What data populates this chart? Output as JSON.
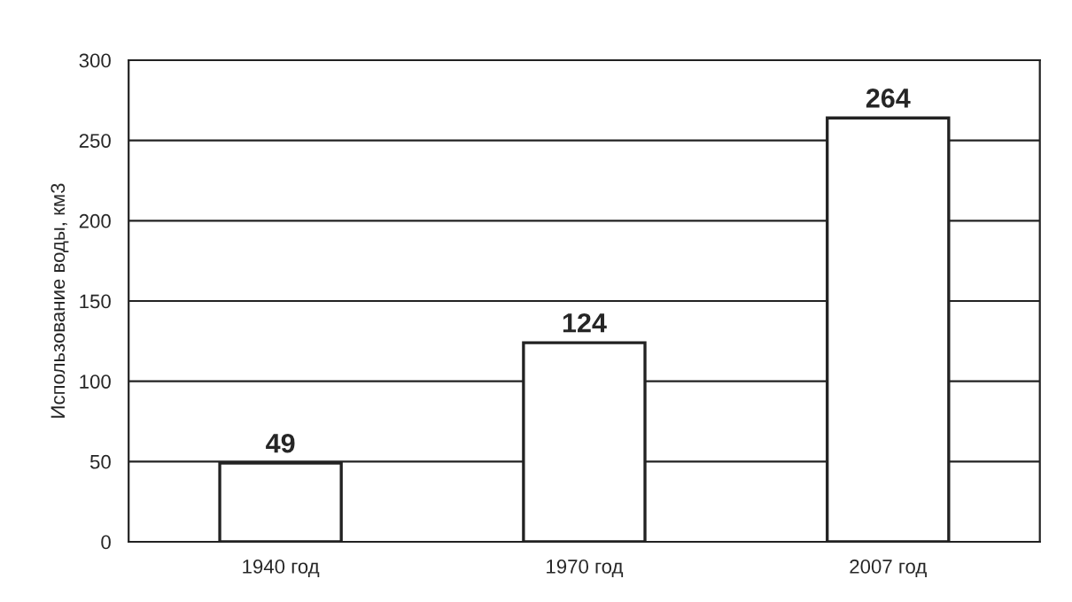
{
  "chart_data": {
    "type": "bar",
    "ylabel": "Использование воды, км3",
    "categories": [
      "1940 год",
      "1970 год",
      "2007 год"
    ],
    "values": [
      49,
      124,
      264
    ],
    "color": "#ffffff",
    "ylim": [
      0,
      300
    ],
    "yticks": [
      0,
      50,
      100,
      150,
      200,
      250,
      300
    ],
    "grid": "y",
    "data_labels": true
  }
}
